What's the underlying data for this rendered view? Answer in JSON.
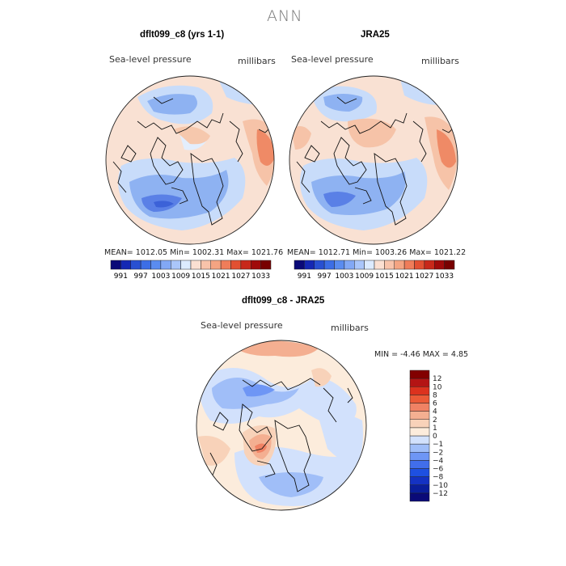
{
  "figure": {
    "season": "ANN"
  },
  "chart_data": [
    {
      "type": "heatmap",
      "projection": "north-polar-stereographic",
      "title": "dflt099_c8 (yrs 1-1)",
      "variable_label": "Sea-level pressure",
      "units_label": "millibars",
      "stats_text": "MEAN= 1012.05   Min= 1002.31   Max= 1021.76",
      "mean": 1012.05,
      "min": 1002.31,
      "max": 1021.76,
      "colorbar": {
        "levels": [
          991,
          994,
          997,
          1000,
          1003,
          1006,
          1009,
          1012,
          1015,
          1018,
          1021,
          1024,
          1027,
          1030,
          1033
        ],
        "tick_labels": [
          "991",
          "997",
          "1003",
          "1009",
          "1015",
          "1021",
          "1027",
          "1033"
        ],
        "colors": [
          "#0a0a78",
          "#1428b4",
          "#2850d2",
          "#3c6ee6",
          "#5a8cf0",
          "#82a8f5",
          "#aac6fa",
          "#dcebff",
          "#fbe0d2",
          "#f8c3aa",
          "#f4a482",
          "#ef7d5a",
          "#e25032",
          "#c8281a",
          "#a00a0a",
          "#780000"
        ]
      }
    },
    {
      "type": "heatmap",
      "projection": "north-polar-stereographic",
      "title": "JRA25",
      "variable_label": "Sea-level pressure",
      "units_label": "millibars",
      "stats_text": "MEAN= 1012.71   Min= 1003.26   Max= 1021.22",
      "mean": 1012.71,
      "min": 1003.26,
      "max": 1021.22,
      "colorbar": {
        "levels": [
          991,
          994,
          997,
          1000,
          1003,
          1006,
          1009,
          1012,
          1015,
          1018,
          1021,
          1024,
          1027,
          1030,
          1033
        ],
        "tick_labels": [
          "991",
          "997",
          "1003",
          "1009",
          "1015",
          "1021",
          "1027",
          "1033"
        ],
        "colors": [
          "#0a0a78",
          "#1428b4",
          "#2850d2",
          "#3c6ee6",
          "#5a8cf0",
          "#82a8f5",
          "#aac6fa",
          "#dcebff",
          "#fbe0d2",
          "#f8c3aa",
          "#f4a482",
          "#ef7d5a",
          "#e25032",
          "#c8281a",
          "#a00a0a",
          "#780000"
        ]
      }
    },
    {
      "type": "heatmap",
      "projection": "north-polar-stereographic",
      "title": "dflt099_c8 - JRA25",
      "variable_label": "Sea-level pressure",
      "units_label": "millibars",
      "minmax_text": "MIN =   -4.46  MAX =     4.85",
      "min": -4.46,
      "max": 4.85,
      "colorbar": {
        "orientation": "vertical",
        "levels": [
          -12,
          -10,
          -8,
          -6,
          -4,
          -2,
          -1,
          0,
          1,
          2,
          4,
          6,
          8,
          10,
          12
        ],
        "tick_labels": [
          "-12",
          "-10",
          "-8",
          "-6",
          "-4",
          "-2",
          "-1",
          "0",
          "1",
          "2",
          "4",
          "6",
          "8",
          "10",
          "12"
        ],
        "colors": [
          "#0a0a78",
          "#0a1e9b",
          "#1432c3",
          "#1e50e1",
          "#416eeb",
          "#6e96f5",
          "#a0bef8",
          "#d2e1fc",
          "#fcecdc",
          "#f8d2b9",
          "#f4af91",
          "#f08264",
          "#eb5a37",
          "#dc321e",
          "#b41414",
          "#820000"
        ]
      }
    }
  ]
}
